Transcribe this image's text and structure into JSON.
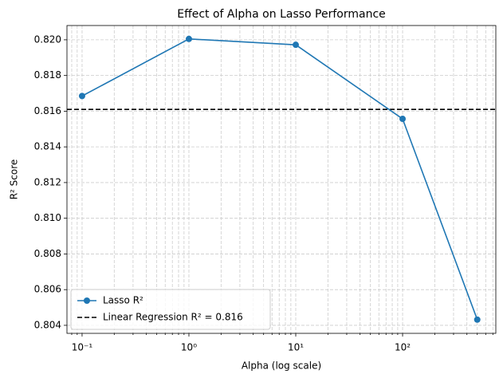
{
  "chart_data": {
    "type": "line",
    "title": "Effect of Alpha on Lasso Performance",
    "xlabel": "Alpha (log scale)",
    "ylabel": "R² Score",
    "x": [
      0.1,
      1,
      10,
      100,
      500
    ],
    "series": [
      {
        "name": "Lasso R²",
        "color": "#1f77b4",
        "values": [
          0.81685,
          0.82005,
          0.81972,
          0.81557,
          0.80432
        ]
      }
    ],
    "hline": {
      "value": 0.8161,
      "label": "Linear Regression R² = 0.816",
      "color": "#000000"
    },
    "xscale": "log",
    "xlim": [
      0.0722,
      746
    ],
    "xticks": [
      {
        "value": 0.1,
        "label": "10⁻¹"
      },
      {
        "value": 1,
        "label": "10⁰"
      },
      {
        "value": 10,
        "label": "10¹"
      },
      {
        "value": 100,
        "label": "10²"
      }
    ],
    "xminorticks": [
      0.08,
      0.09,
      0.2,
      0.3,
      0.4,
      0.5,
      0.6,
      0.7,
      0.8,
      0.9,
      2,
      3,
      4,
      5,
      6,
      7,
      8,
      9,
      20,
      30,
      40,
      50,
      60,
      70,
      80,
      90,
      200,
      300,
      400,
      500,
      600,
      700
    ],
    "ylim": [
      0.80355,
      0.8208
    ],
    "yticks": [
      0.804,
      0.806,
      0.808,
      {
        "value": 0.81,
        "label": "0.810"
      },
      0.812,
      0.814,
      0.816,
      0.818,
      {
        "value": 0.82,
        "label": "0.820"
      }
    ],
    "grid": true,
    "legend": "lower left"
  }
}
